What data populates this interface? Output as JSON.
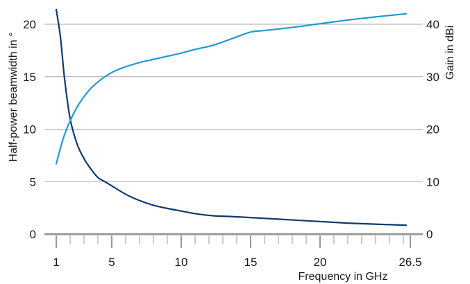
{
  "chart_data": {
    "type": "line",
    "xlabel": "Frequency in GHz",
    "ylabel_left": "Half-power beamwidth in °",
    "ylabel_right": "Gain in dBi",
    "xlim": [
      1,
      26.5
    ],
    "ylim_left": [
      0,
      20
    ],
    "ylim_right": [
      0,
      40
    ],
    "x_ticks": [
      1,
      5,
      10,
      15,
      20,
      26.5
    ],
    "x_minor_ticks": [
      2,
      3,
      4,
      6,
      7,
      8,
      9,
      11,
      12,
      13,
      14,
      16,
      17,
      18,
      19,
      21,
      22,
      23,
      24,
      25,
      26
    ],
    "y_ticks_left": [
      0,
      5,
      10,
      15,
      20
    ],
    "y_ticks_right": [
      0,
      10,
      20,
      30,
      40
    ],
    "grid": true,
    "colors": {
      "beamwidth": "#0d3a6e",
      "gain": "#1f9ad6",
      "grid": "#aaaaaa",
      "axis": "#999999"
    },
    "series": [
      {
        "key": "beamwidth",
        "axis": "left",
        "x": [
          1,
          1.3,
          1.6,
          2,
          2.5,
          3,
          3.5,
          4,
          4.5,
          5,
          6,
          7,
          8,
          9,
          10,
          11,
          12.3,
          14,
          16,
          18,
          20,
          22,
          24,
          26.2
        ],
        "values": [
          21.4,
          18.8,
          14.8,
          11.0,
          8.6,
          7.2,
          6.2,
          5.4,
          5.0,
          4.6,
          3.8,
          3.2,
          2.75,
          2.45,
          2.2,
          1.95,
          1.75,
          1.65,
          1.5,
          1.35,
          1.2,
          1.05,
          0.95,
          0.85
        ]
      },
      {
        "key": "gain",
        "axis": "right",
        "x": [
          1,
          1.5,
          2,
          2.5,
          3,
          3.5,
          4,
          4.5,
          5,
          5.5,
          6,
          7,
          8,
          9,
          10,
          11,
          12.3,
          13.5,
          15,
          16,
          18,
          20,
          22,
          24,
          26.2
        ],
        "values": [
          13.4,
          18.2,
          21.6,
          24.2,
          26.2,
          27.8,
          29.0,
          30.0,
          30.8,
          31.4,
          31.9,
          32.7,
          33.3,
          33.9,
          34.5,
          35.2,
          36.0,
          37.1,
          38.5,
          38.8,
          39.4,
          40.1,
          40.8,
          41.4,
          42.0
        ]
      }
    ]
  }
}
